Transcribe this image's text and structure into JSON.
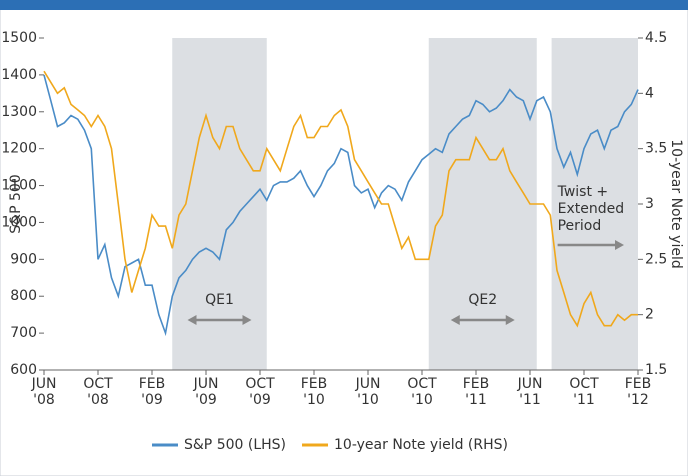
{
  "chart_data": {
    "type": "line",
    "ylabel": "S&P 500",
    "y2label": "10-year Note yield",
    "xlim": [
      0,
      44
    ],
    "xticks": [
      {
        "value": 0,
        "label": "JUN '08"
      },
      {
        "value": 4,
        "label": "OCT '08"
      },
      {
        "value": 8,
        "label": "FEB '09"
      },
      {
        "value": 12,
        "label": "JUN '09"
      },
      {
        "value": 16,
        "label": "OCT '09"
      },
      {
        "value": 20,
        "label": "FEB '10"
      },
      {
        "value": 24,
        "label": "JUN '10"
      },
      {
        "value": 28,
        "label": "OCT '10"
      },
      {
        "value": 32,
        "label": "FEB '11"
      },
      {
        "value": 36,
        "label": "JUN '11"
      },
      {
        "value": 40,
        "label": "OCT '11"
      },
      {
        "value": 44,
        "label": "FEB '12"
      }
    ],
    "ylim": [
      600,
      1500
    ],
    "yticks": [
      600,
      700,
      800,
      900,
      1000,
      1100,
      1200,
      1300,
      1400,
      1500
    ],
    "y2lim": [
      1.5,
      4.5
    ],
    "y2ticks": [
      1.5,
      2,
      2.5,
      3,
      3.5,
      4,
      4.5
    ],
    "legend": "bottom",
    "x": [
      0,
      0.5,
      1,
      1.5,
      2,
      2.5,
      3,
      3.5,
      4,
      4.5,
      5,
      5.5,
      6,
      6.5,
      7,
      7.5,
      8,
      8.5,
      9,
      9.5,
      10,
      10.5,
      11,
      11.5,
      12,
      12.5,
      13,
      13.5,
      14,
      14.5,
      15,
      15.5,
      16,
      16.5,
      17,
      17.5,
      18,
      18.5,
      19,
      19.5,
      20,
      20.5,
      21,
      21.5,
      22,
      22.5,
      23,
      23.5,
      24,
      24.5,
      25,
      25.5,
      26,
      26.5,
      27,
      27.5,
      28,
      28.5,
      29,
      29.5,
      30,
      30.5,
      31,
      31.5,
      32,
      32.5,
      33,
      33.5,
      34,
      34.5,
      35,
      35.5,
      36,
      36.5,
      37,
      37.5,
      38,
      38.5,
      39,
      39.5,
      40,
      40.5,
      41,
      41.5,
      42,
      42.5,
      43,
      43.5,
      44
    ],
    "series": [
      {
        "name": "S&P 500 (LHS)",
        "color": "#4a8cc7",
        "axis": "y",
        "values": [
          1400,
          1330,
          1260,
          1270,
          1290,
          1280,
          1250,
          1200,
          900,
          940,
          850,
          800,
          880,
          890,
          900,
          830,
          830,
          750,
          700,
          800,
          850,
          870,
          900,
          920,
          930,
          920,
          900,
          980,
          1000,
          1030,
          1050,
          1070,
          1090,
          1060,
          1100,
          1110,
          1110,
          1120,
          1140,
          1100,
          1070,
          1100,
          1140,
          1160,
          1200,
          1190,
          1100,
          1080,
          1090,
          1040,
          1080,
          1100,
          1090,
          1060,
          1110,
          1140,
          1170,
          1185,
          1200,
          1190,
          1240,
          1260,
          1280,
          1290,
          1330,
          1320,
          1300,
          1310,
          1330,
          1360,
          1340,
          1330,
          1280,
          1330,
          1340,
          1300,
          1200,
          1150,
          1190,
          1130,
          1200,
          1240,
          1250,
          1200,
          1250,
          1260,
          1300,
          1320,
          1360
        ]
      },
      {
        "name": "10-year Note yield (RHS)",
        "color": "#f0a81c",
        "axis": "y2",
        "values": [
          4.2,
          4.1,
          4.0,
          4.05,
          3.9,
          3.85,
          3.8,
          3.7,
          3.8,
          3.7,
          3.5,
          3.0,
          2.5,
          2.2,
          2.4,
          2.6,
          2.9,
          2.8,
          2.8,
          2.6,
          2.9,
          3.0,
          3.3,
          3.6,
          3.8,
          3.6,
          3.5,
          3.7,
          3.7,
          3.5,
          3.4,
          3.3,
          3.3,
          3.5,
          3.4,
          3.3,
          3.5,
          3.7,
          3.8,
          3.6,
          3.6,
          3.7,
          3.7,
          3.8,
          3.85,
          3.7,
          3.4,
          3.3,
          3.2,
          3.1,
          3.0,
          3.0,
          2.8,
          2.6,
          2.7,
          2.5,
          2.5,
          2.5,
          2.8,
          2.9,
          3.3,
          3.4,
          3.4,
          3.4,
          3.6,
          3.5,
          3.4,
          3.4,
          3.5,
          3.3,
          3.2,
          3.1,
          3.0,
          3.0,
          3.0,
          2.9,
          2.4,
          2.2,
          2.0,
          1.9,
          2.1,
          2.2,
          2.0,
          1.9,
          1.9,
          2.0,
          1.95,
          2.0,
          2.0
        ]
      }
    ],
    "shaded_regions": [
      {
        "label": [
          "QE1"
        ],
        "x": [
          9.5,
          16.5
        ],
        "arrow": "both"
      },
      {
        "label": [
          "QE2"
        ],
        "x": [
          28.5,
          36.5
        ],
        "arrow": "both"
      },
      {
        "label": [
          "Twist +",
          "Extended",
          "Period"
        ],
        "x": [
          37.6,
          44
        ],
        "arrow": "right"
      }
    ]
  }
}
